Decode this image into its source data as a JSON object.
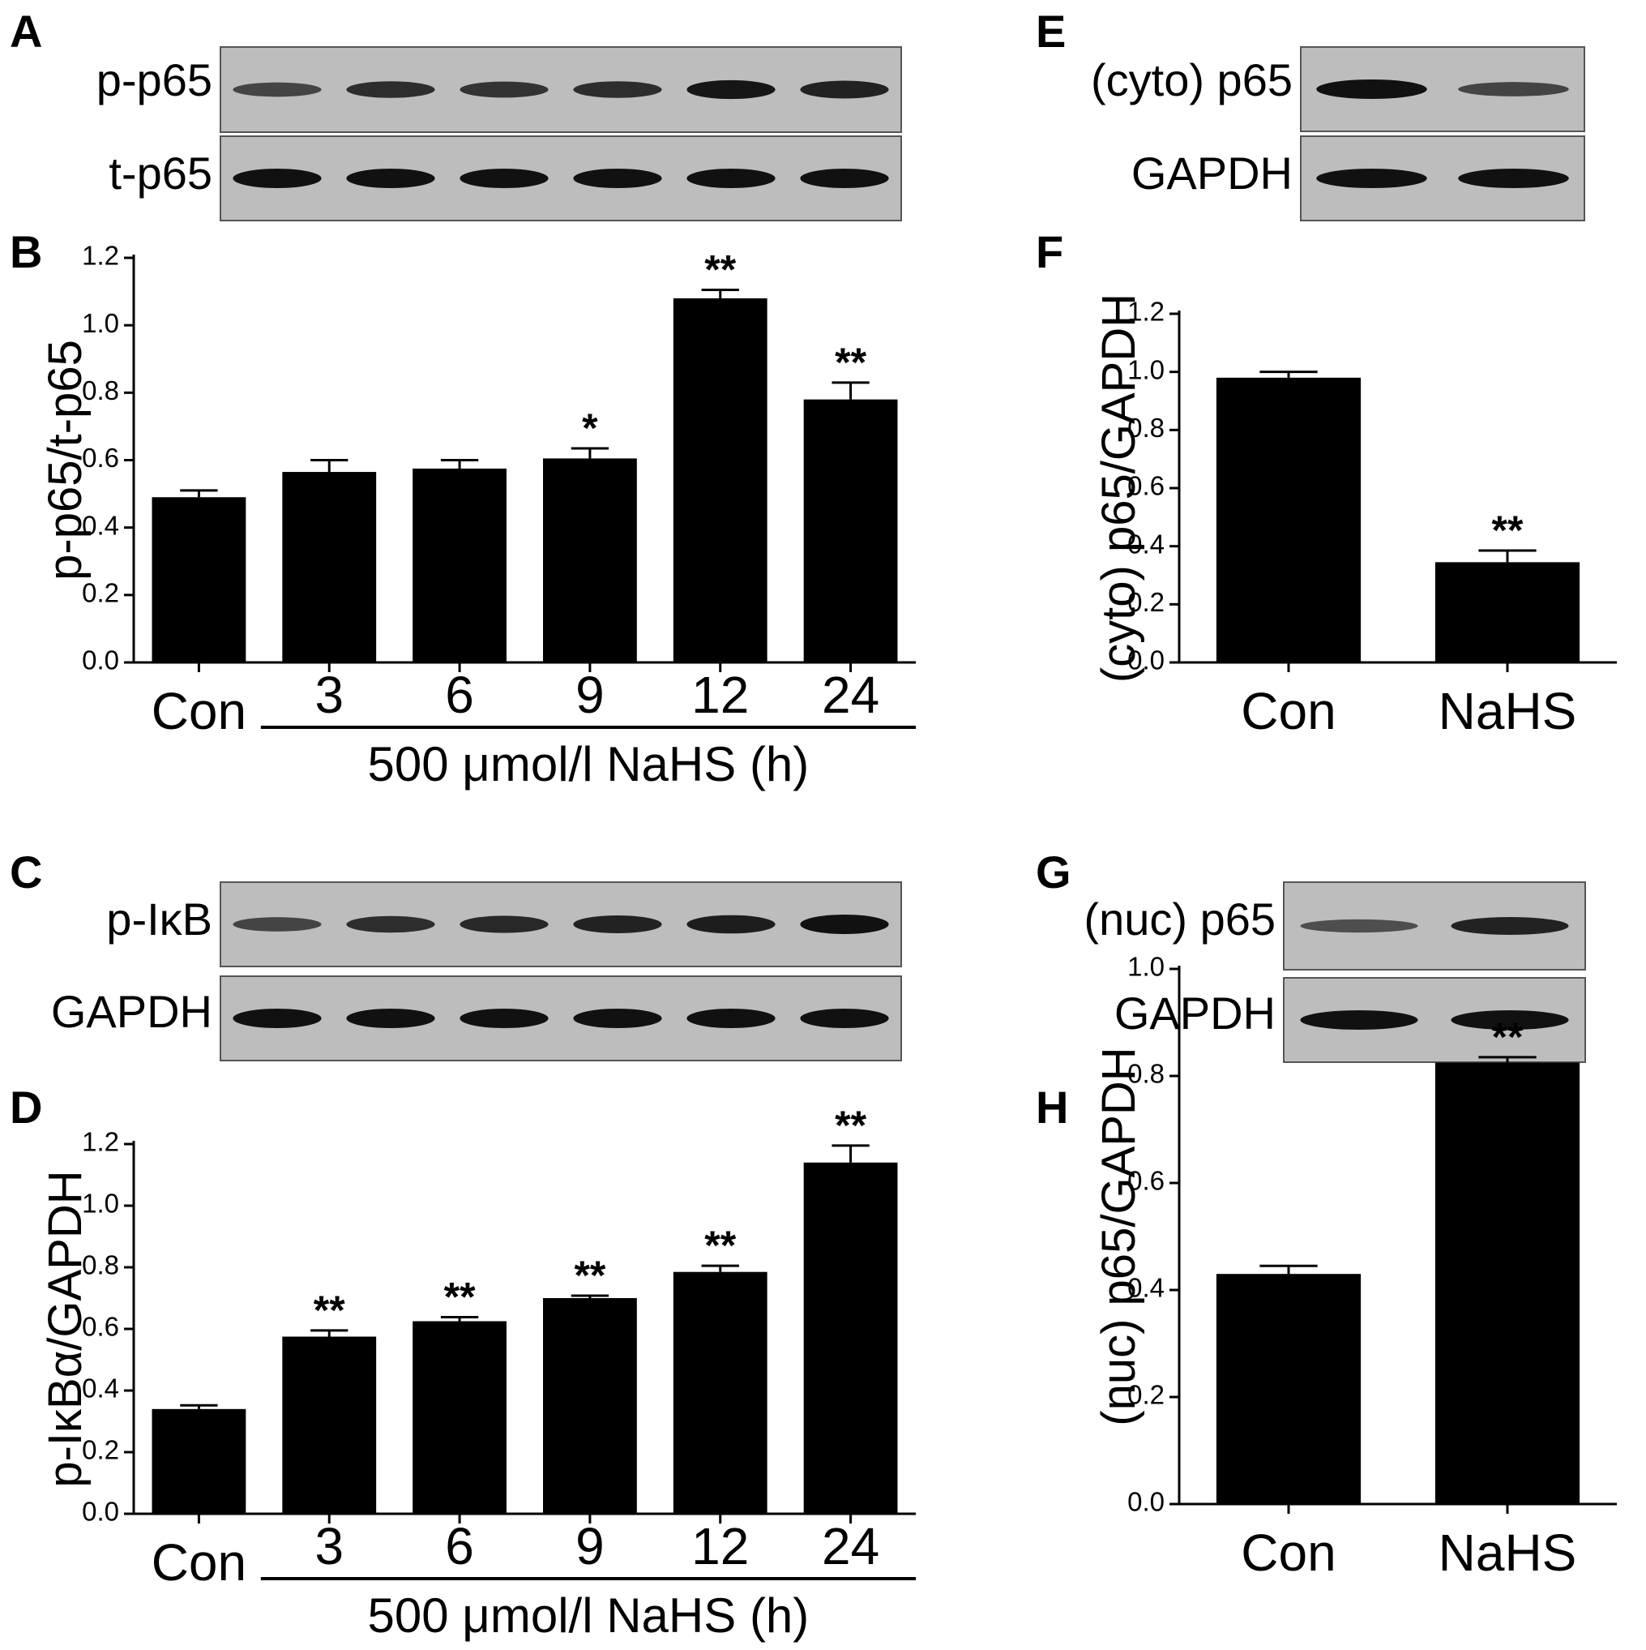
{
  "panels": [
    {
      "id": "A",
      "label": "A",
      "type": "blot",
      "rows": [
        {
          "label": "p-p65",
          "intensity": [
            0.55,
            0.75,
            0.7,
            0.75,
            0.95,
            0.85
          ]
        },
        {
          "label": "t-p65",
          "intensity": [
            1,
            1,
            1,
            1,
            1,
            1
          ]
        }
      ]
    },
    {
      "id": "C",
      "label": "C",
      "type": "blot",
      "rows": [
        {
          "label": "p-IκB",
          "intensity": [
            0.55,
            0.75,
            0.8,
            0.85,
            0.9,
            1.0
          ]
        },
        {
          "label": "GAPDH",
          "intensity": [
            1,
            1,
            1,
            1,
            1,
            1
          ]
        }
      ]
    },
    {
      "id": "E",
      "label": "E",
      "type": "blot",
      "rows": [
        {
          "label": "(cyto) p65",
          "intensity": [
            1.0,
            0.55
          ]
        },
        {
          "label": "GAPDH",
          "intensity": [
            1,
            1
          ]
        }
      ]
    },
    {
      "id": "G",
      "label": "G",
      "type": "blot",
      "rows": [
        {
          "label": "(nuc)  p65",
          "intensity": [
            0.45,
            0.85
          ]
        },
        {
          "label": "GAPDH",
          "intensity": [
            1,
            1
          ]
        }
      ]
    }
  ],
  "chart_data": [
    {
      "id": "B",
      "label": "B",
      "type": "bar",
      "categories": [
        "Con",
        "3",
        "6",
        "9",
        "12",
        "24"
      ],
      "values": [
        0.49,
        0.565,
        0.575,
        0.605,
        1.08,
        0.78
      ],
      "errors": [
        0.02,
        0.035,
        0.025,
        0.03,
        0.025,
        0.05
      ],
      "significance": [
        "",
        "",
        "",
        "*",
        "**",
        "**"
      ],
      "ylabel": "p-p65/t-p65",
      "xgroup_label": "500 μmol/l NaHS (h)",
      "ylim": [
        0,
        1.2
      ],
      "yticks": [
        "0.0",
        "0.2",
        "0.4",
        "0.6",
        "0.8",
        "1.0",
        "1.2"
      ]
    },
    {
      "id": "D",
      "label": "D",
      "type": "bar",
      "categories": [
        "Con",
        "3",
        "6",
        "9",
        "12",
        "24"
      ],
      "values": [
        0.34,
        0.575,
        0.625,
        0.7,
        0.785,
        1.14
      ],
      "errors": [
        0.012,
        0.02,
        0.013,
        0.008,
        0.02,
        0.055
      ],
      "significance": [
        "",
        "**",
        "**",
        "**",
        "**",
        "**"
      ],
      "ylabel": "p-IκBα/GAPDH",
      "xgroup_label": "500 μmol/l NaHS (h)",
      "ylim": [
        0,
        1.2
      ],
      "yticks": [
        "0.0",
        "0.2",
        "0.4",
        "0.6",
        "0.8",
        "1.0",
        "1.2"
      ]
    },
    {
      "id": "F",
      "label": "F",
      "type": "bar",
      "categories": [
        "Con",
        "NaHS"
      ],
      "values": [
        0.98,
        0.345
      ],
      "errors": [
        0.02,
        0.04
      ],
      "significance": [
        "",
        "**"
      ],
      "ylabel": "(cyto) p65/GAPDH",
      "xgroup_label": "",
      "ylim": [
        0,
        1.2
      ],
      "yticks": [
        "0.0",
        "0.2",
        "0.4",
        "0.6",
        "0.8",
        "1.0",
        "1.2"
      ]
    },
    {
      "id": "H",
      "label": "H",
      "type": "bar",
      "categories": [
        "Con",
        "NaHS"
      ],
      "values": [
        0.43,
        0.825
      ],
      "errors": [
        0.015,
        0.01
      ],
      "significance": [
        "",
        "**"
      ],
      "ylabel": "(nuc) p65/GAPDH",
      "xgroup_label": "",
      "ylim": [
        0,
        1.0
      ],
      "yticks": [
        "0.0",
        "0.2",
        "0.4",
        "0.6",
        "0.8",
        "1.0"
      ]
    }
  ]
}
